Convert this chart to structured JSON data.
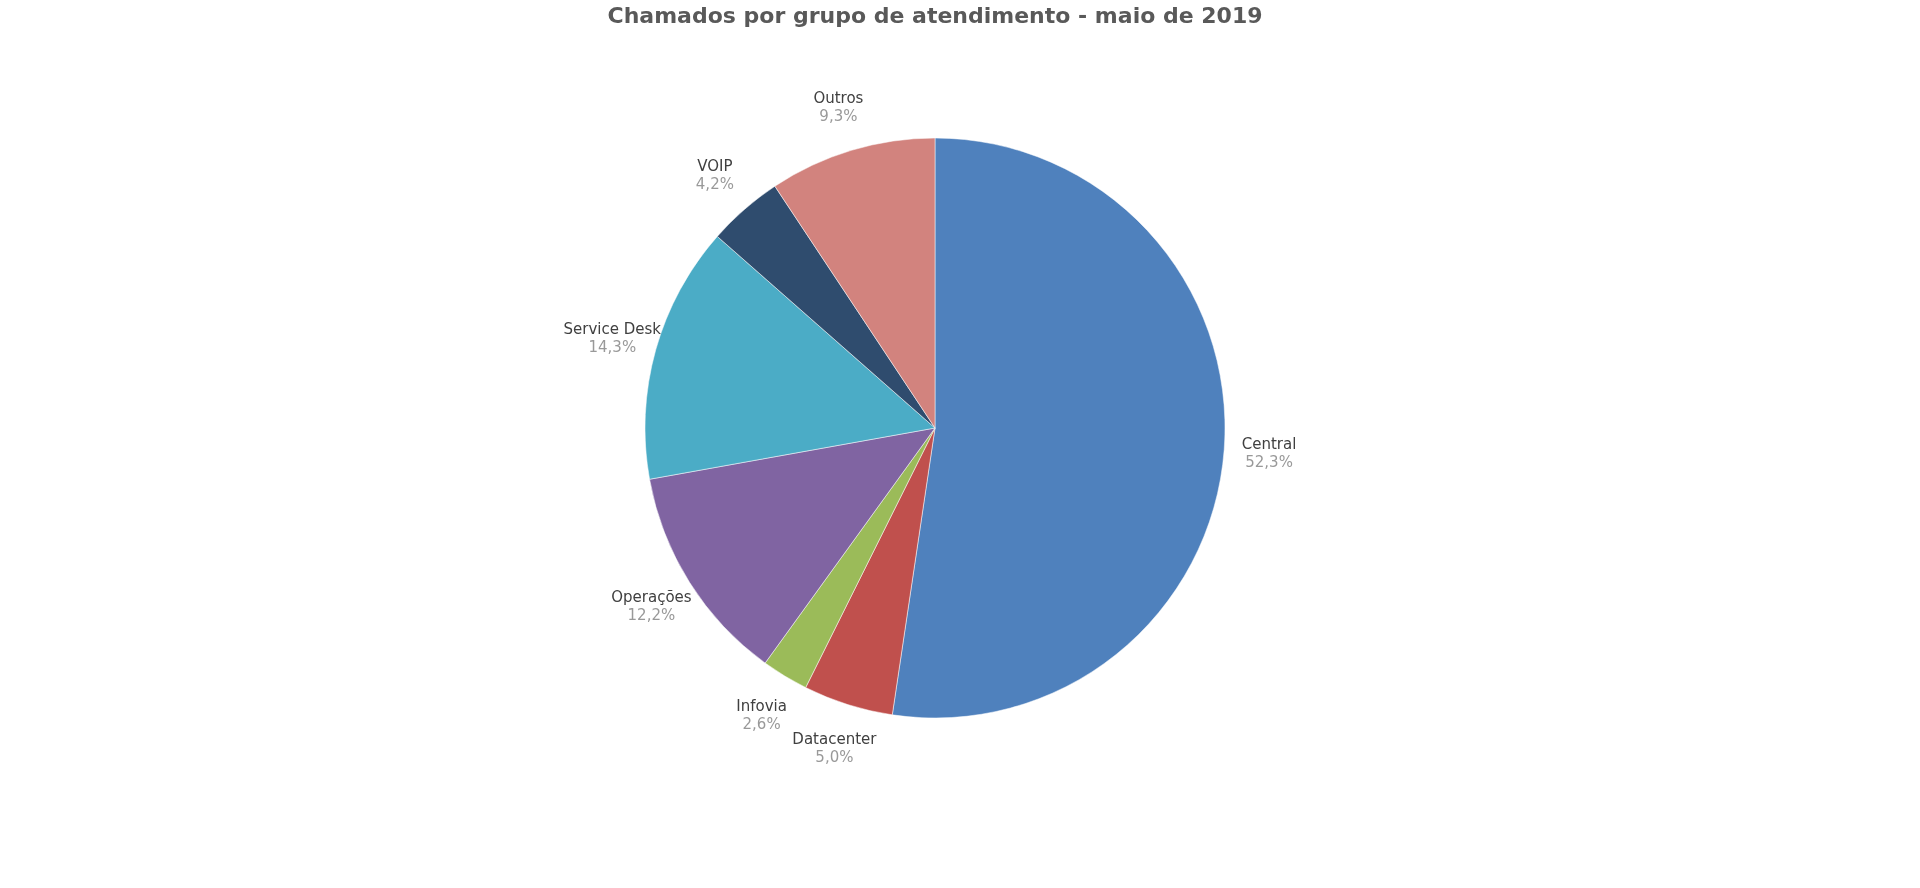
{
  "chart_data": {
    "type": "pie",
    "title": "Chamados por grupo de atendimento - maio de 2019",
    "categories": [
      "Central",
      "Datacenter",
      "Infovia",
      "Operações",
      "Service Desk",
      "VOIP",
      "Outros"
    ],
    "values": [
      52.3,
      5.0,
      2.6,
      12.2,
      14.3,
      4.2,
      9.3
    ],
    "colors": [
      "#4f81bd",
      "#c0504d",
      "#9bbb59",
      "#8064a2",
      "#4bacc6",
      "#2f4c6e",
      "#d2837e"
    ],
    "value_labels": [
      "52,3%",
      "5,0%",
      "2,6%",
      "12,2%",
      "14,3%",
      "4,2%",
      "9,3%"
    ],
    "legend": false
  }
}
